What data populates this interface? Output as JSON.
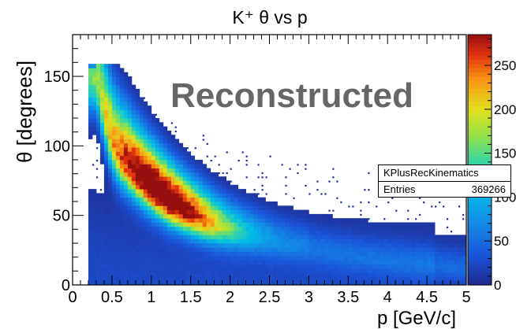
{
  "chart_data": {
    "type": "heatmap",
    "title": "K⁺ θ vs p",
    "xlabel": "p [GeV/c]",
    "ylabel": "θ [degrees]",
    "xlim": [
      0,
      5
    ],
    "ylim": [
      0,
      180
    ],
    "x_ticks": [
      "0",
      "0.5",
      "1",
      "1.5",
      "2",
      "2.5",
      "3",
      "3.5",
      "4",
      "4.5",
      "5"
    ],
    "y_ticks": [
      "0",
      "50",
      "100",
      "150"
    ],
    "colorbar": {
      "min": 0,
      "max": 285,
      "ticks": [
        "0",
        "50",
        "100",
        "150",
        "200",
        "250"
      ]
    },
    "annotation": "Reconstructed",
    "ridge": [
      {
        "p": 0.3,
        "theta": 150
      },
      {
        "p": 0.4,
        "theta": 125
      },
      {
        "p": 0.5,
        "theta": 105
      },
      {
        "p": 0.6,
        "theta": 94
      },
      {
        "p": 0.8,
        "theta": 82
      },
      {
        "p": 1.0,
        "theta": 71
      },
      {
        "p": 1.25,
        "theta": 60
      },
      {
        "p": 1.5,
        "theta": 52
      },
      {
        "p": 1.75,
        "theta": 45
      },
      {
        "p": 2.0,
        "theta": 40
      },
      {
        "p": 2.5,
        "theta": 33
      },
      {
        "p": 3.0,
        "theta": 27
      },
      {
        "p": 3.5,
        "theta": 22
      },
      {
        "p": 4.0,
        "theta": 18
      },
      {
        "p": 4.5,
        "theta": 15
      },
      {
        "p": 5.0,
        "theta": 12
      }
    ],
    "peak_region": {
      "p": [
        0.6,
        1.8
      ],
      "max_count": 280
    }
  },
  "stats": {
    "name": "KPlusRecKinematics",
    "entries_label": "Entries",
    "entries": "369266"
  }
}
